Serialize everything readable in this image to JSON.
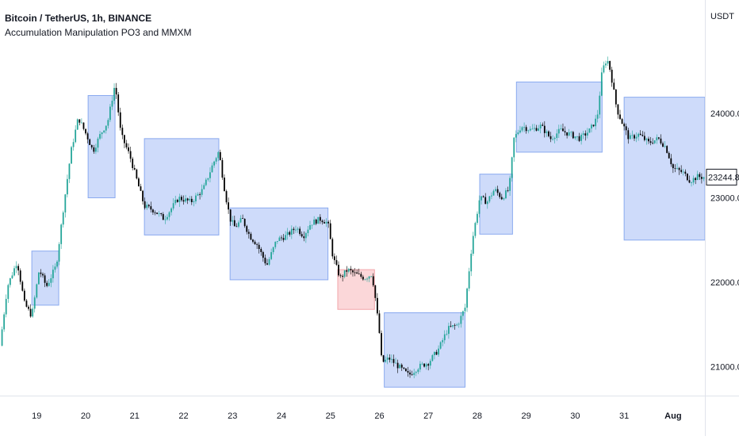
{
  "legend": {
    "title": "Bitcoin / TetherUS, 1h, BINANCE",
    "indicator": "Accumulation Manipulation PO3 and MMXM"
  },
  "colors": {
    "up_candle": "#26a69a",
    "down_candle": "#000000",
    "box_fill": "#c9d8fa",
    "box_stroke": "#7ea1ee",
    "manip_fill": "#fbd3d5",
    "manip_stroke": "#f19ca1",
    "price_label_border": "#131722"
  },
  "chart_data": {
    "type": "candlestick",
    "title": "Bitcoin / TetherUS, 1h, BINANCE",
    "indicator": "Accumulation Manipulation PO3 and MMXM",
    "currency": "USDT",
    "last_price": "23244.83",
    "yticks": [
      "24000.00",
      "23000.00",
      "22000.00",
      "21000.00"
    ],
    "ylim": [
      20660,
      25340
    ],
    "xticks": [
      "19",
      "20",
      "21",
      "22",
      "23",
      "24",
      "25",
      "26",
      "27",
      "28",
      "29",
      "30",
      "31",
      "Aug"
    ],
    "xlim_days": [
      18.25,
      32.65
    ],
    "path": [
      [
        18.25,
        21250
      ],
      [
        18.4,
        21950
      ],
      [
        18.6,
        22250
      ],
      [
        18.75,
        21750
      ],
      [
        18.9,
        21600
      ],
      [
        19.05,
        22150
      ],
      [
        19.2,
        21950
      ],
      [
        19.4,
        22200
      ],
      [
        19.55,
        22900
      ],
      [
        19.7,
        23550
      ],
      [
        19.85,
        23950
      ],
      [
        20.05,
        23700
      ],
      [
        20.15,
        23550
      ],
      [
        20.3,
        23750
      ],
      [
        20.45,
        23900
      ],
      [
        20.6,
        24350
      ],
      [
        20.72,
        23750
      ],
      [
        20.9,
        23500
      ],
      [
        21.1,
        23100
      ],
      [
        21.2,
        22900
      ],
      [
        21.4,
        22850
      ],
      [
        21.6,
        22750
      ],
      [
        21.9,
        23000
      ],
      [
        22.15,
        22950
      ],
      [
        22.4,
        23100
      ],
      [
        22.6,
        23400
      ],
      [
        22.72,
        23550
      ],
      [
        22.85,
        23050
      ],
      [
        22.95,
        22750
      ],
      [
        23.05,
        22650
      ],
      [
        23.2,
        22750
      ],
      [
        23.35,
        22550
      ],
      [
        23.5,
        22450
      ],
      [
        23.7,
        22200
      ],
      [
        23.9,
        22500
      ],
      [
        24.1,
        22550
      ],
      [
        24.3,
        22650
      ],
      [
        24.45,
        22550
      ],
      [
        24.6,
        22700
      ],
      [
        24.8,
        22750
      ],
      [
        24.95,
        22700
      ],
      [
        25.05,
        22300
      ],
      [
        25.2,
        22050
      ],
      [
        25.35,
        22150
      ],
      [
        25.5,
        22100
      ],
      [
        25.7,
        22050
      ],
      [
        25.85,
        22100
      ],
      [
        25.92,
        21800
      ],
      [
        26.0,
        21400
      ],
      [
        26.05,
        21050
      ],
      [
        26.2,
        21100
      ],
      [
        26.4,
        21000
      ],
      [
        26.6,
        20900
      ],
      [
        26.8,
        21000
      ],
      [
        27.0,
        21050
      ],
      [
        27.2,
        21200
      ],
      [
        27.4,
        21450
      ],
      [
        27.6,
        21500
      ],
      [
        27.75,
        21700
      ],
      [
        27.9,
        22500
      ],
      [
        28.05,
        23000
      ],
      [
        28.2,
        22950
      ],
      [
        28.35,
        23100
      ],
      [
        28.5,
        23000
      ],
      [
        28.65,
        23100
      ],
      [
        28.75,
        23700
      ],
      [
        28.9,
        23850
      ],
      [
        29.1,
        23800
      ],
      [
        29.3,
        23850
      ],
      [
        29.5,
        23700
      ],
      [
        29.7,
        23800
      ],
      [
        29.9,
        23750
      ],
      [
        30.1,
        23700
      ],
      [
        30.3,
        23800
      ],
      [
        30.45,
        23950
      ],
      [
        30.55,
        24500
      ],
      [
        30.65,
        24650
      ],
      [
        30.72,
        24500
      ],
      [
        30.85,
        24050
      ],
      [
        30.95,
        23900
      ],
      [
        31.1,
        23700
      ],
      [
        31.3,
        23750
      ],
      [
        31.5,
        23650
      ],
      [
        31.7,
        23700
      ],
      [
        31.85,
        23600
      ],
      [
        32.0,
        23350
      ],
      [
        32.2,
        23300
      ],
      [
        32.35,
        23200
      ],
      [
        32.5,
        23250
      ],
      [
        32.6,
        23244.83
      ]
    ],
    "boxes": [
      {
        "kind": "accumulation",
        "start": 18.9,
        "end": 19.45,
        "low": 21730,
        "high": 22370
      },
      {
        "kind": "accumulation",
        "start": 20.05,
        "end": 20.6,
        "low": 23000,
        "high": 24210
      },
      {
        "kind": "accumulation",
        "start": 21.2,
        "end": 22.72,
        "low": 22560,
        "high": 23700
      },
      {
        "kind": "accumulation",
        "start": 22.95,
        "end": 24.95,
        "low": 22030,
        "high": 22880
      },
      {
        "kind": "manipulation",
        "start": 25.15,
        "end": 25.9,
        "low": 21680,
        "high": 22150
      },
      {
        "kind": "accumulation",
        "start": 26.1,
        "end": 27.75,
        "low": 20760,
        "high": 21640
      },
      {
        "kind": "accumulation",
        "start": 28.05,
        "end": 28.72,
        "low": 22570,
        "high": 23280
      },
      {
        "kind": "accumulation",
        "start": 28.8,
        "end": 30.55,
        "low": 23540,
        "high": 24370
      },
      {
        "kind": "accumulation",
        "start": 31.0,
        "end": 32.65,
        "low": 22500,
        "high": 24190
      }
    ]
  }
}
